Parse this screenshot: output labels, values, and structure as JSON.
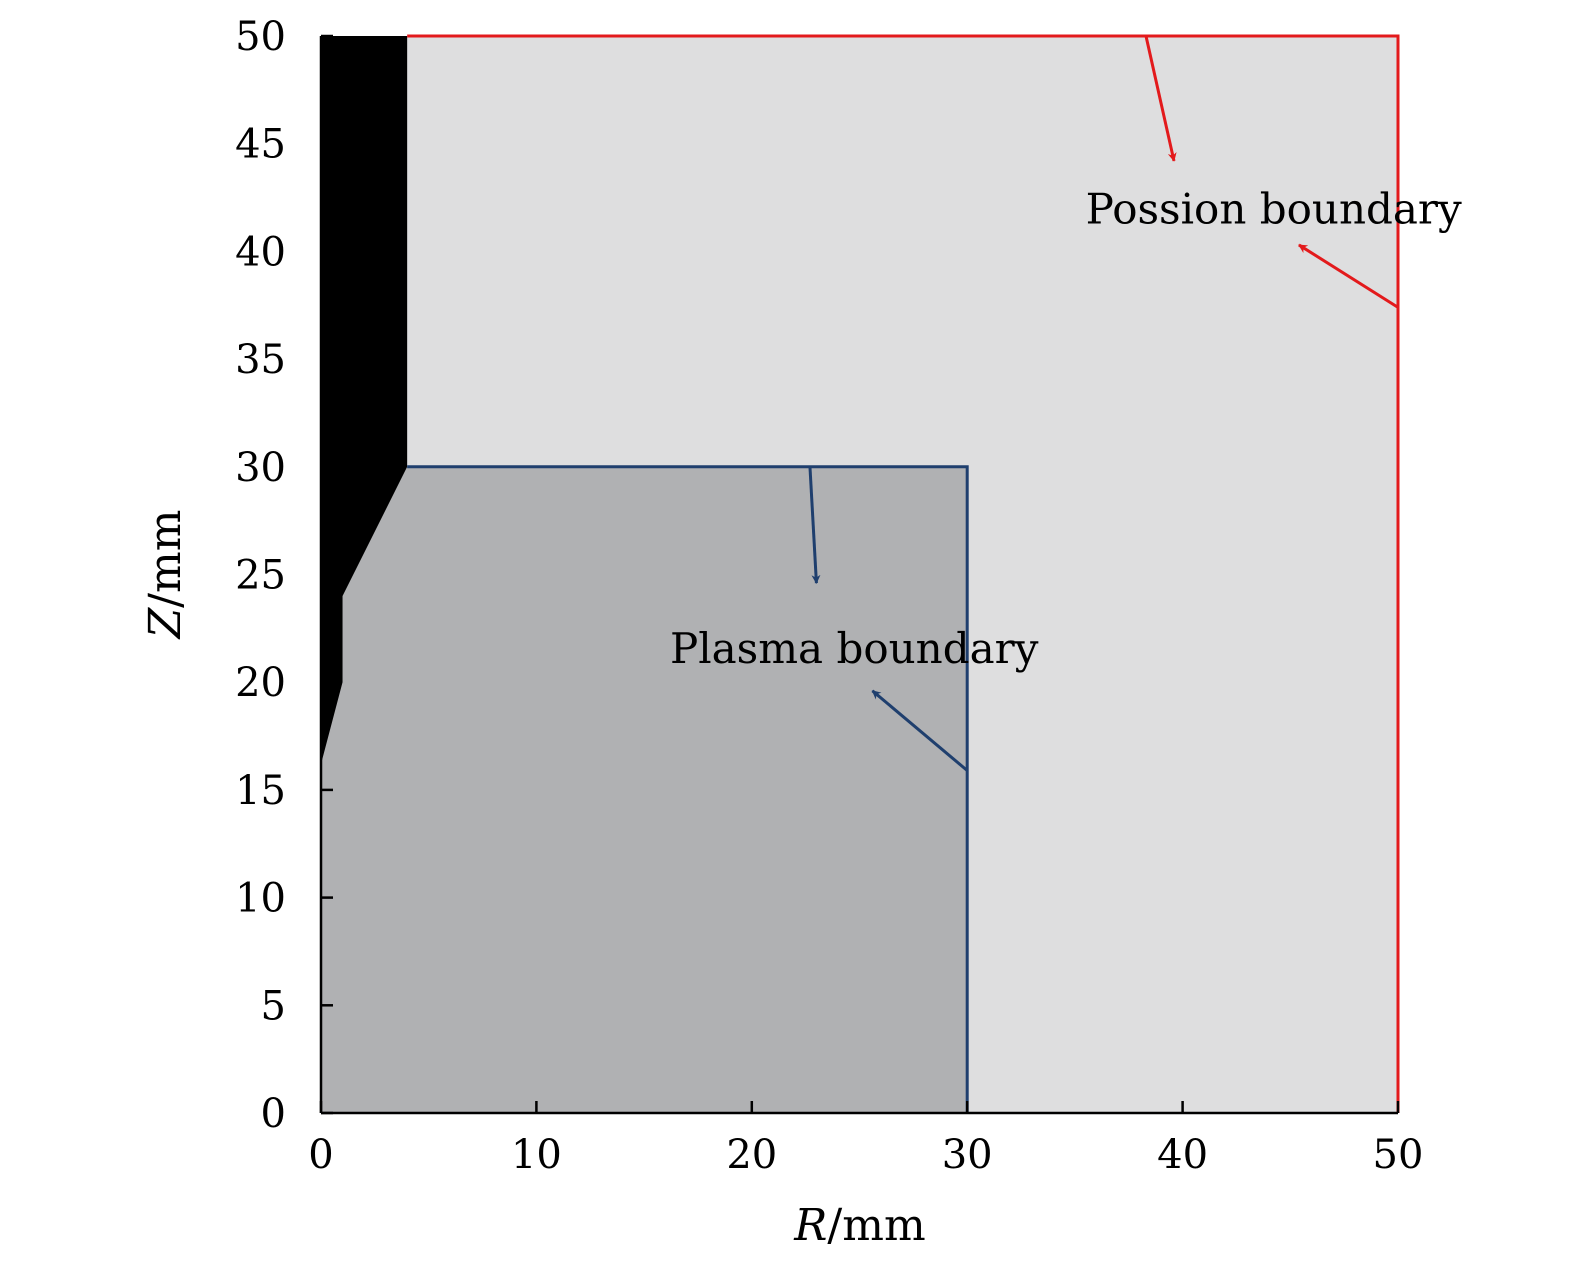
{
  "diagram": {
    "x_axis": {
      "label": "R/mm",
      "label_italic_part": "R",
      "label_rest": "/mm",
      "range": [
        0,
        50
      ],
      "ticks": [
        0,
        10,
        20,
        30,
        40,
        50
      ],
      "tick_labels": [
        "0",
        "10",
        "20",
        "30",
        "40",
        "50"
      ]
    },
    "y_axis": {
      "label": "Z/mm",
      "label_italic_part": "Z",
      "label_rest": "/mm",
      "range": [
        0,
        50
      ],
      "ticks": [
        0,
        5,
        10,
        15,
        20,
        25,
        30,
        35,
        40,
        45,
        50
      ],
      "tick_labels": [
        "0",
        "5",
        "10",
        "15",
        "20",
        "25",
        "30",
        "35",
        "40",
        "45",
        "50"
      ]
    },
    "regions": {
      "poisson_domain": {
        "r_range": [
          0,
          50
        ],
        "z_range": [
          0,
          50
        ],
        "fill_color": "#dededf",
        "boundary_color": "#e31a1c"
      },
      "plasma_domain": {
        "r_range": [
          0,
          30
        ],
        "z_range": [
          0,
          30
        ],
        "fill_color": "#b0b1b3",
        "boundary_color": "#1f3f6e"
      },
      "electrode": {
        "fill_color": "#000000",
        "outline_rz": [
          [
            0,
            50
          ],
          [
            4,
            50
          ],
          [
            4,
            30
          ],
          [
            1,
            24
          ],
          [
            1,
            20
          ],
          [
            0,
            16.2
          ]
        ]
      }
    },
    "annotations": [
      {
        "text": "Possion boundary",
        "text_rz": [
          35.5,
          41.3
        ],
        "color": "#e31a1c",
        "arrows": [
          {
            "from_rz": [
              38.3,
              50
            ],
            "to_rz": [
              39.6,
              44.2
            ]
          },
          {
            "from_rz": [
              50,
              37.4
            ],
            "to_rz": [
              45.4,
              40.3
            ]
          }
        ]
      },
      {
        "text": "Plasma boundary",
        "text_rz": [
          16.2,
          20.9
        ],
        "color": "#1f3f6e",
        "arrows": [
          {
            "from_rz": [
              22.7,
              30
            ],
            "to_rz": [
              23.0,
              24.6
            ]
          },
          {
            "from_rz": [
              30,
              15.9
            ],
            "to_rz": [
              25.6,
              19.6
            ]
          }
        ]
      }
    ]
  }
}
